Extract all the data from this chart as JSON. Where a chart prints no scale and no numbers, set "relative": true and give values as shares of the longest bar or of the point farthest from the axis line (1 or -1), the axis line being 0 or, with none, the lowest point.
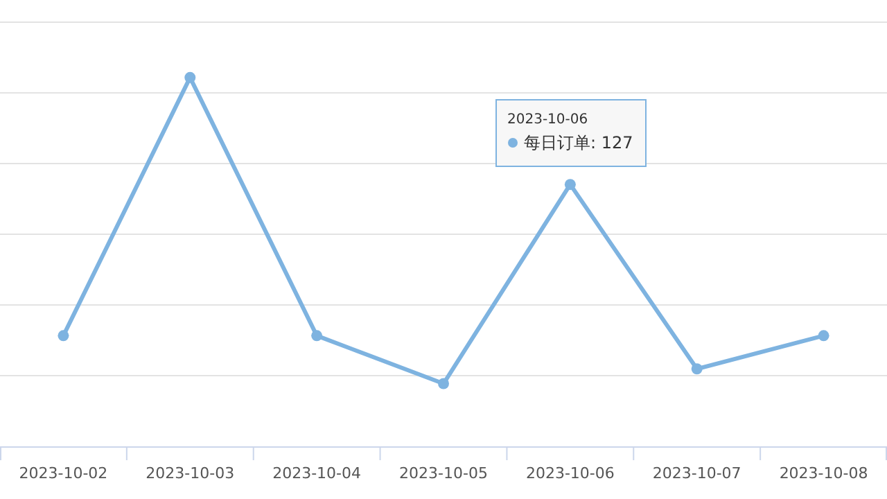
{
  "chart_data": {
    "type": "line",
    "relative": true,
    "categories": [
      "2023-10-02",
      "2023-10-03",
      "2023-10-04",
      "2023-10-05",
      "2023-10-06",
      "2023-10-07",
      "2023-10-08"
    ],
    "series": [
      {
        "color": "#7eb3e0",
        "values": [
          0.3,
          1,
          0.3,
          0.17,
          0.71,
          0.21,
          0.3
        ]
      }
    ],
    "marker": "circle",
    "grid": "y",
    "line_style": "solid",
    "annotations": [
      "2023-10-06",
      "每日订单: 127"
    ]
  }
}
